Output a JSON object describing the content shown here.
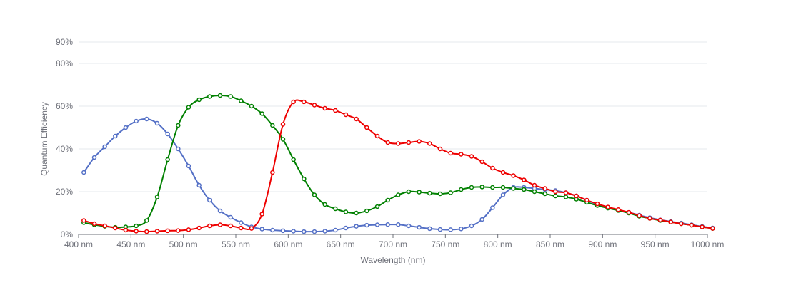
{
  "chart_data": {
    "type": "line",
    "title": "",
    "xlabel": "Wavelength (nm)",
    "ylabel": "Quantum Efficiency",
    "xlim": [
      400,
      1000
    ],
    "ylim": [
      0,
      90
    ],
    "grid": true,
    "legend": "none",
    "x_ticks": [
      400,
      450,
      500,
      550,
      600,
      650,
      700,
      750,
      800,
      850,
      900,
      950,
      1000
    ],
    "x_tick_labels": [
      "400 nm",
      "450 nm",
      "500 nm",
      "550 nm",
      "600 nm",
      "650 nm",
      "700 nm",
      "750 nm",
      "800 nm",
      "850 nm",
      "900 nm",
      "950 nm",
      "1000 nm"
    ],
    "y_ticks": [
      0,
      20,
      40,
      60,
      80,
      90
    ],
    "y_tick_labels": [
      "0%",
      "20%",
      "40%",
      "60%",
      "80%",
      "90%"
    ],
    "x": [
      405,
      415,
      425,
      435,
      445,
      455,
      465,
      475,
      485,
      495,
      505,
      515,
      525,
      535,
      545,
      555,
      565,
      575,
      585,
      595,
      605,
      615,
      625,
      635,
      645,
      655,
      665,
      675,
      685,
      695,
      705,
      715,
      725,
      735,
      745,
      755,
      765,
      775,
      785,
      795,
      805,
      815,
      825,
      835,
      845,
      855,
      865,
      875,
      885,
      895,
      905,
      915,
      925,
      935,
      945,
      955,
      965,
      975,
      985,
      995,
      1005
    ],
    "series": [
      {
        "color": "#5470c6",
        "values": [
          29,
          36,
          41,
          46,
          50,
          53,
          54,
          52,
          47,
          40,
          32,
          23,
          16,
          11,
          8,
          5.5,
          3.5,
          2.5,
          2,
          1.7,
          1.5,
          1.3,
          1.3,
          1.5,
          2,
          3,
          3.8,
          4.3,
          4.5,
          4.6,
          4.6,
          4,
          3.3,
          2.7,
          2.3,
          2.2,
          2.6,
          4,
          7,
          12.5,
          18.5,
          22,
          22,
          21.5,
          21,
          20.5,
          19.5,
          18,
          16,
          14,
          12.7,
          11.3,
          10.3,
          9,
          7.8,
          6.8,
          6,
          5.3,
          4.5,
          3.7,
          3
        ]
      },
      {
        "color": "#008000",
        "values": [
          5.5,
          4.5,
          3.8,
          3.3,
          3.5,
          4,
          6.5,
          17.5,
          35,
          51,
          59.5,
          63,
          64.5,
          65,
          64.5,
          62.5,
          60,
          56.5,
          51,
          44.5,
          35,
          26,
          18.5,
          14,
          12,
          10.5,
          10,
          11,
          13,
          16,
          18.5,
          20,
          19.8,
          19.3,
          19,
          19.5,
          21,
          22,
          22.2,
          22,
          22,
          21.5,
          21,
          20,
          19,
          18,
          17.5,
          16.5,
          15,
          13.5,
          12.3,
          11.2,
          10,
          8.5,
          7.5,
          6.5,
          5.8,
          5,
          4.3,
          3.5,
          2.8
        ]
      },
      {
        "color": "#ee0000",
        "values": [
          6.5,
          5,
          4,
          3,
          2,
          1.5,
          1.3,
          1.5,
          1.7,
          1.8,
          2.2,
          3,
          4,
          4.5,
          4,
          3,
          2.8,
          9.5,
          29,
          51.5,
          62,
          62,
          60.5,
          59,
          58,
          56,
          54,
          50,
          46,
          43,
          42.5,
          43,
          43.5,
          42.5,
          40,
          38,
          37.5,
          36.5,
          34,
          31,
          29,
          27.5,
          25.5,
          23,
          21.5,
          20,
          19.5,
          18,
          16,
          14.3,
          12.8,
          11.6,
          10.3,
          8.8,
          7.5,
          6.7,
          5.8,
          5,
          4.3,
          3.5,
          2.8
        ]
      }
    ]
  }
}
